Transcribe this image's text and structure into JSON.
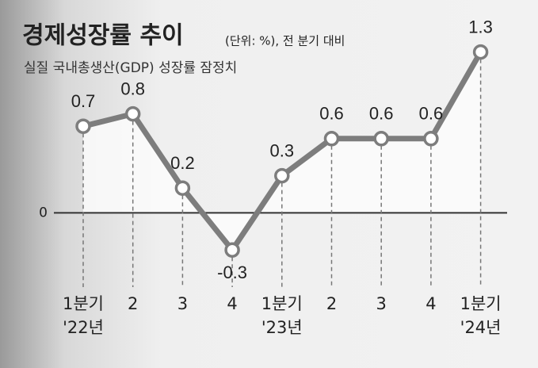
{
  "chart_data": {
    "type": "line",
    "title": "경제성장률 추이",
    "subtitle": "(단위: %), 전 분기 대비",
    "note": "실질 국내총생산(GDP) 성장률 잠정치",
    "categories": [
      [
        "1분기",
        "'22년"
      ],
      "2",
      "3",
      "4",
      [
        "1분기",
        "'23년"
      ],
      "2",
      "3",
      "4",
      [
        "1분기",
        "'24년"
      ]
    ],
    "values": [
      0.7,
      0.8,
      0.2,
      -0.3,
      0.3,
      0.6,
      0.6,
      0.6,
      1.3
    ],
    "color": "#7d7d7d",
    "ylim": [
      -0.6,
      1.4
    ],
    "yticks": [
      0
    ]
  }
}
